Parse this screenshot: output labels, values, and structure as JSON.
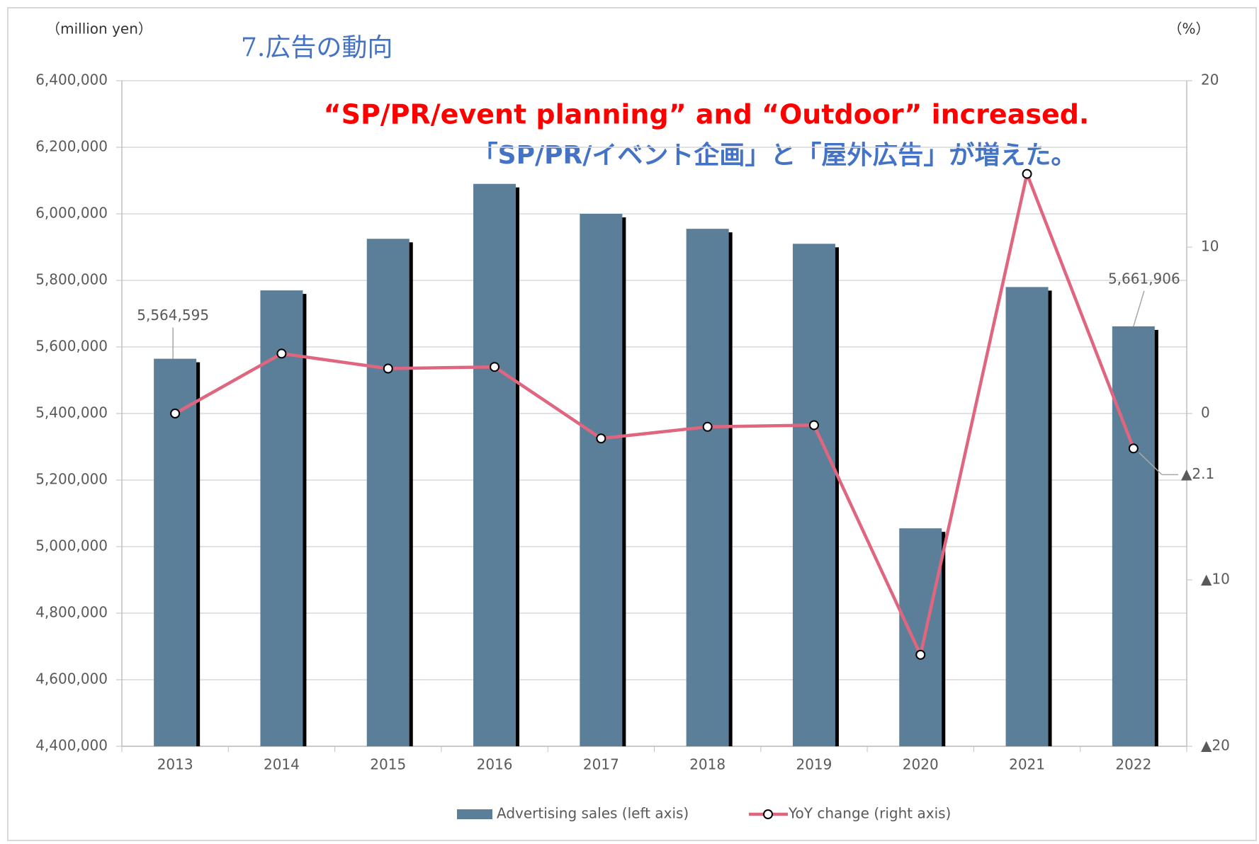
{
  "chart_data": {
    "type": "bar",
    "title": "7.広告の動向",
    "subtitle": "“SP/PR/event planning” and “Outdoor” increased.",
    "annotation": "「SP/PR/イベント企画」と「屋外広告」が増えた。",
    "y_label": "（million yen）",
    "y2_label": "（%）",
    "categories": [
      "2013",
      "2014",
      "2015",
      "2016",
      "2017",
      "2018",
      "2019",
      "2020",
      "2021",
      "2022"
    ],
    "series": [
      {
        "name": "Advertising sales (left axis)",
        "type": "bar",
        "color": "#5b7f99",
        "values": [
          5564595,
          5770000,
          5925000,
          6090000,
          6000000,
          5955000,
          5910000,
          5055000,
          5780000,
          5661906
        ],
        "value_labels": [
          "5,564,595",
          null,
          null,
          null,
          null,
          null,
          null,
          null,
          null,
          "5,661,906"
        ]
      },
      {
        "name": "YoY change (right axis)",
        "type": "line",
        "axis": "y2",
        "color": "#e06680",
        "values": [
          0,
          3.6,
          2.7,
          2.8,
          -1.5,
          -0.8,
          -0.7,
          -14.5,
          14.4,
          -2.1
        ],
        "value_labels": [
          null,
          null,
          null,
          null,
          null,
          null,
          null,
          null,
          null,
          "▲2.1"
        ]
      }
    ],
    "ylim": [
      4400000,
      6400000
    ],
    "yticks": [
      {
        "value": 4400000,
        "label": "4,400,000"
      },
      {
        "value": 4600000,
        "label": "4,600,000"
      },
      {
        "value": 4800000,
        "label": "4,800,000"
      },
      {
        "value": 5000000,
        "label": "5,000,000"
      },
      {
        "value": 5200000,
        "label": "5,200,000"
      },
      {
        "value": 5400000,
        "label": "5,400,000"
      },
      {
        "value": 5600000,
        "label": "5,600,000"
      },
      {
        "value": 5800000,
        "label": "5,800,000"
      },
      {
        "value": 6000000,
        "label": "6,000,000"
      },
      {
        "value": 6200000,
        "label": "6,200,000"
      },
      {
        "value": 6400000,
        "label": "6,400,000"
      }
    ],
    "y2lim": [
      -20,
      20
    ],
    "y2ticks": [
      {
        "value": -20,
        "label": "▲20"
      },
      {
        "value": -10,
        "label": "▲10"
      },
      0,
      10,
      20
    ],
    "grid": true,
    "legend": "bottom"
  }
}
